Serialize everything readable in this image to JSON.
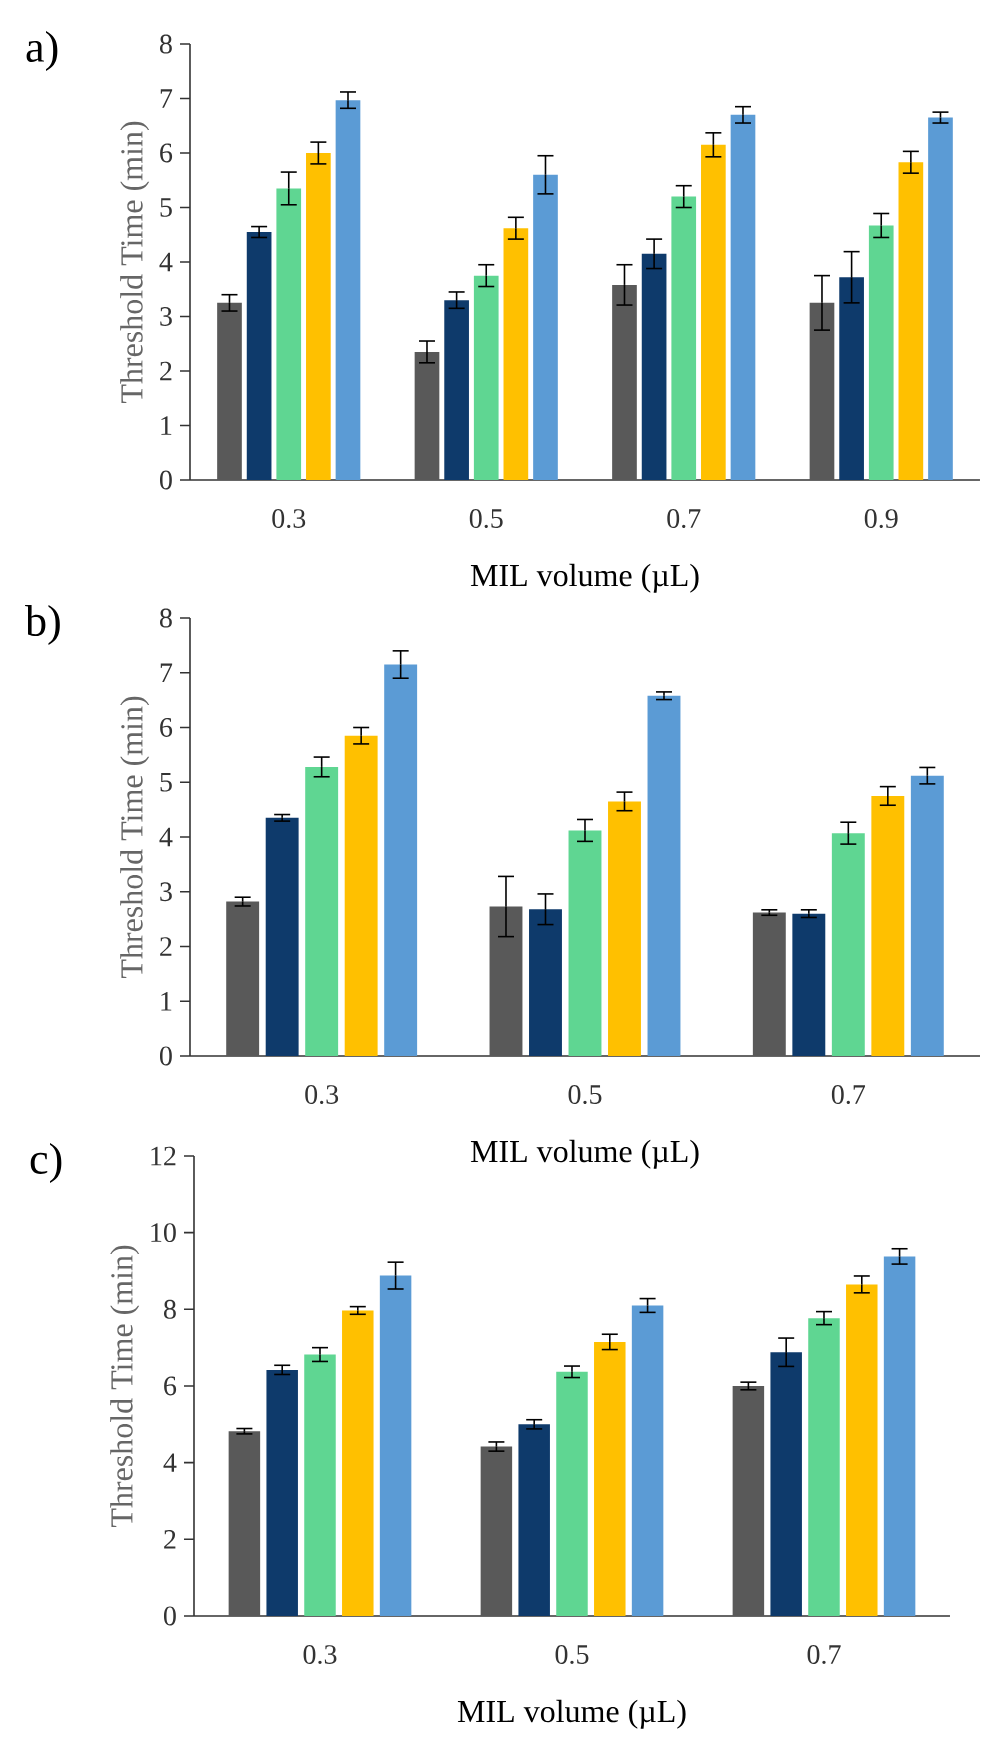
{
  "chart_data": [
    {
      "type": "bar",
      "title": "a)",
      "xlabel": "MIL volume (µL)",
      "ylabel": "Threshold Time (min)",
      "categories": [
        "0.3",
        "0.5",
        "0.7",
        "0.9"
      ],
      "ylim": [
        0,
        8
      ],
      "yticks": [
        0,
        1,
        2,
        3,
        4,
        5,
        6,
        7,
        8
      ],
      "series": [
        {
          "color": "#595959",
          "values": [
            3.25,
            2.35,
            3.58,
            3.25
          ],
          "errors": [
            0.15,
            0.2,
            0.37,
            0.5
          ]
        },
        {
          "color": "#0e3a6b",
          "values": [
            4.55,
            3.3,
            4.15,
            3.72
          ],
          "errors": [
            0.1,
            0.15,
            0.27,
            0.47
          ]
        },
        {
          "color": "#5fd692",
          "values": [
            5.35,
            3.75,
            5.2,
            4.67
          ],
          "errors": [
            0.3,
            0.2,
            0.2,
            0.22
          ]
        },
        {
          "color": "#ffc000",
          "values": [
            6.0,
            4.62,
            6.15,
            5.83
          ],
          "errors": [
            0.2,
            0.2,
            0.22,
            0.2
          ]
        },
        {
          "color": "#5b9bd5",
          "values": [
            6.97,
            5.6,
            6.7,
            6.65
          ],
          "errors": [
            0.15,
            0.35,
            0.15,
            0.1
          ]
        }
      ]
    },
    {
      "type": "bar",
      "title": "b)",
      "xlabel": "MIL volume (µL)",
      "ylabel": "Threshold Time (min)",
      "categories": [
        "0.3",
        "0.5",
        "0.7"
      ],
      "ylim": [
        0,
        8
      ],
      "yticks": [
        0,
        1,
        2,
        3,
        4,
        5,
        6,
        7,
        8
      ],
      "series": [
        {
          "color": "#595959",
          "values": [
            2.82,
            2.73,
            2.62
          ],
          "errors": [
            0.08,
            0.55,
            0.05
          ]
        },
        {
          "color": "#0e3a6b",
          "values": [
            4.35,
            2.68,
            2.6
          ],
          "errors": [
            0.06,
            0.28,
            0.07
          ]
        },
        {
          "color": "#5fd692",
          "values": [
            5.28,
            4.12,
            4.07
          ],
          "errors": [
            0.18,
            0.2,
            0.2
          ]
        },
        {
          "color": "#ffc000",
          "values": [
            5.85,
            4.65,
            4.75
          ],
          "errors": [
            0.15,
            0.17,
            0.17
          ]
        },
        {
          "color": "#5b9bd5",
          "values": [
            7.15,
            6.58,
            5.12
          ],
          "errors": [
            0.25,
            0.07,
            0.15
          ]
        }
      ]
    },
    {
      "type": "bar",
      "title": "c)",
      "xlabel": "MIL volume (µL)",
      "ylabel": "Threshold Time (min)",
      "categories": [
        "0.3",
        "0.5",
        "0.7"
      ],
      "ylim": [
        0,
        12
      ],
      "yticks": [
        0,
        2,
        4,
        6,
        8,
        10,
        12
      ],
      "series": [
        {
          "color": "#595959",
          "values": [
            4.82,
            4.42,
            6.0
          ],
          "errors": [
            0.07,
            0.12,
            0.1
          ]
        },
        {
          "color": "#0e3a6b",
          "values": [
            6.42,
            5.0,
            6.88
          ],
          "errors": [
            0.12,
            0.12,
            0.37
          ]
        },
        {
          "color": "#5fd692",
          "values": [
            6.82,
            6.37,
            7.77
          ],
          "errors": [
            0.18,
            0.15,
            0.17
          ]
        },
        {
          "color": "#ffc000",
          "values": [
            7.97,
            7.15,
            8.65
          ],
          "errors": [
            0.1,
            0.2,
            0.22
          ]
        },
        {
          "color": "#5b9bd5",
          "values": [
            8.88,
            8.1,
            9.38
          ],
          "errors": [
            0.35,
            0.18,
            0.2
          ]
        }
      ]
    }
  ]
}
